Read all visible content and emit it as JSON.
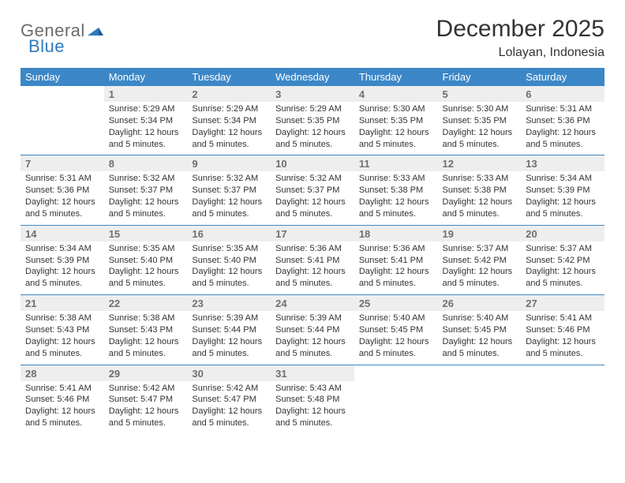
{
  "logo": {
    "text1": "General",
    "text2": "Blue",
    "gray": "#6c6c6c",
    "blue": "#2f78bd"
  },
  "title": "December 2025",
  "location": "Lolayan, Indonesia",
  "colors": {
    "header_bg": "#3c87c7",
    "header_fg": "#ffffff",
    "daynum_bg": "#eeeeee",
    "daynum_fg": "#6f6f6f",
    "rule": "#3c87c7",
    "text": "#333333",
    "page_bg": "#ffffff"
  },
  "day_headers": [
    "Sunday",
    "Monday",
    "Tuesday",
    "Wednesday",
    "Thursday",
    "Friday",
    "Saturday"
  ],
  "weeks": [
    [
      null,
      {
        "n": "1",
        "sr": "5:29 AM",
        "ss": "5:34 PM",
        "dl": "12 hours and 5 minutes."
      },
      {
        "n": "2",
        "sr": "5:29 AM",
        "ss": "5:34 PM",
        "dl": "12 hours and 5 minutes."
      },
      {
        "n": "3",
        "sr": "5:29 AM",
        "ss": "5:35 PM",
        "dl": "12 hours and 5 minutes."
      },
      {
        "n": "4",
        "sr": "5:30 AM",
        "ss": "5:35 PM",
        "dl": "12 hours and 5 minutes."
      },
      {
        "n": "5",
        "sr": "5:30 AM",
        "ss": "5:35 PM",
        "dl": "12 hours and 5 minutes."
      },
      {
        "n": "6",
        "sr": "5:31 AM",
        "ss": "5:36 PM",
        "dl": "12 hours and 5 minutes."
      }
    ],
    [
      {
        "n": "7",
        "sr": "5:31 AM",
        "ss": "5:36 PM",
        "dl": "12 hours and 5 minutes."
      },
      {
        "n": "8",
        "sr": "5:32 AM",
        "ss": "5:37 PM",
        "dl": "12 hours and 5 minutes."
      },
      {
        "n": "9",
        "sr": "5:32 AM",
        "ss": "5:37 PM",
        "dl": "12 hours and 5 minutes."
      },
      {
        "n": "10",
        "sr": "5:32 AM",
        "ss": "5:37 PM",
        "dl": "12 hours and 5 minutes."
      },
      {
        "n": "11",
        "sr": "5:33 AM",
        "ss": "5:38 PM",
        "dl": "12 hours and 5 minutes."
      },
      {
        "n": "12",
        "sr": "5:33 AM",
        "ss": "5:38 PM",
        "dl": "12 hours and 5 minutes."
      },
      {
        "n": "13",
        "sr": "5:34 AM",
        "ss": "5:39 PM",
        "dl": "12 hours and 5 minutes."
      }
    ],
    [
      {
        "n": "14",
        "sr": "5:34 AM",
        "ss": "5:39 PM",
        "dl": "12 hours and 5 minutes."
      },
      {
        "n": "15",
        "sr": "5:35 AM",
        "ss": "5:40 PM",
        "dl": "12 hours and 5 minutes."
      },
      {
        "n": "16",
        "sr": "5:35 AM",
        "ss": "5:40 PM",
        "dl": "12 hours and 5 minutes."
      },
      {
        "n": "17",
        "sr": "5:36 AM",
        "ss": "5:41 PM",
        "dl": "12 hours and 5 minutes."
      },
      {
        "n": "18",
        "sr": "5:36 AM",
        "ss": "5:41 PM",
        "dl": "12 hours and 5 minutes."
      },
      {
        "n": "19",
        "sr": "5:37 AM",
        "ss": "5:42 PM",
        "dl": "12 hours and 5 minutes."
      },
      {
        "n": "20",
        "sr": "5:37 AM",
        "ss": "5:42 PM",
        "dl": "12 hours and 5 minutes."
      }
    ],
    [
      {
        "n": "21",
        "sr": "5:38 AM",
        "ss": "5:43 PM",
        "dl": "12 hours and 5 minutes."
      },
      {
        "n": "22",
        "sr": "5:38 AM",
        "ss": "5:43 PM",
        "dl": "12 hours and 5 minutes."
      },
      {
        "n": "23",
        "sr": "5:39 AM",
        "ss": "5:44 PM",
        "dl": "12 hours and 5 minutes."
      },
      {
        "n": "24",
        "sr": "5:39 AM",
        "ss": "5:44 PM",
        "dl": "12 hours and 5 minutes."
      },
      {
        "n": "25",
        "sr": "5:40 AM",
        "ss": "5:45 PM",
        "dl": "12 hours and 5 minutes."
      },
      {
        "n": "26",
        "sr": "5:40 AM",
        "ss": "5:45 PM",
        "dl": "12 hours and 5 minutes."
      },
      {
        "n": "27",
        "sr": "5:41 AM",
        "ss": "5:46 PM",
        "dl": "12 hours and 5 minutes."
      }
    ],
    [
      {
        "n": "28",
        "sr": "5:41 AM",
        "ss": "5:46 PM",
        "dl": "12 hours and 5 minutes."
      },
      {
        "n": "29",
        "sr": "5:42 AM",
        "ss": "5:47 PM",
        "dl": "12 hours and 5 minutes."
      },
      {
        "n": "30",
        "sr": "5:42 AM",
        "ss": "5:47 PM",
        "dl": "12 hours and 5 minutes."
      },
      {
        "n": "31",
        "sr": "5:43 AM",
        "ss": "5:48 PM",
        "dl": "12 hours and 5 minutes."
      },
      null,
      null,
      null
    ]
  ],
  "labels": {
    "sunrise": "Sunrise: ",
    "sunset": "Sunset: ",
    "daylight": "Daylight: "
  }
}
